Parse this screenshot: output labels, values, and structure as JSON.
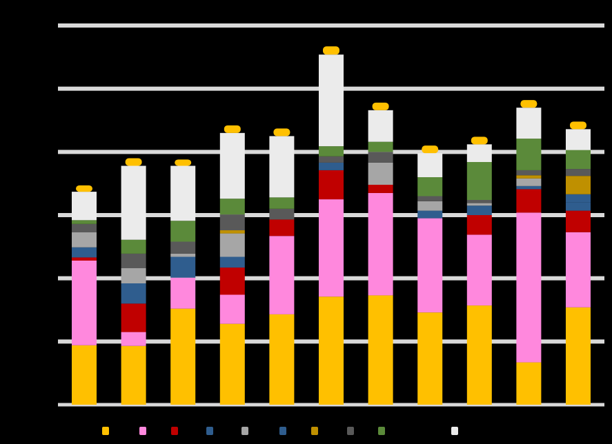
{
  "chart_data": {
    "type": "bar",
    "stacked": true,
    "categories": [
      "",
      "",
      "",
      "",
      "",
      "",
      "",
      "",
      "",
      "",
      ""
    ],
    "ylim": [
      0,
      6
    ],
    "grid": true,
    "legend_position": "bottom",
    "series": [
      {
        "color": "#FFC000",
        "values": [
          0.94,
          0.93,
          1.52,
          1.28,
          1.43,
          1.71,
          1.73,
          1.46,
          1.57,
          0.67,
          1.54
        ]
      },
      {
        "color": "#FF88DD",
        "values": [
          1.34,
          0.22,
          0.49,
          0.46,
          1.24,
          1.54,
          1.62,
          1.49,
          1.12,
          2.37,
          1.19
        ]
      },
      {
        "color": "#C00000",
        "values": [
          0.05,
          0.45,
          0.0,
          0.43,
          0.26,
          0.46,
          0.13,
          0.0,
          0.31,
          0.37,
          0.34
        ]
      },
      {
        "color": "#2F5D8E",
        "values": [
          0.16,
          0.32,
          0.33,
          0.17,
          0.0,
          0.12,
          0.0,
          0.12,
          0.15,
          0.05,
          0.13
        ]
      },
      {
        "color": "#A6A6A6",
        "values": [
          0.24,
          0.24,
          0.05,
          0.37,
          0.0,
          0.0,
          0.35,
          0.15,
          0.04,
          0.12,
          0.0
        ]
      },
      {
        "color": "#2F5D8E",
        "values": [
          0.0,
          0.0,
          0.0,
          0.0,
          0.0,
          0.0,
          0.0,
          0.0,
          0.0,
          0.0,
          0.13
        ]
      },
      {
        "color": "#BF9000",
        "values": [
          0.0,
          0.0,
          0.0,
          0.05,
          0.0,
          0.0,
          0.0,
          0.0,
          0.0,
          0.05,
          0.29
        ]
      },
      {
        "color": "#595959",
        "values": [
          0.13,
          0.23,
          0.19,
          0.25,
          0.17,
          0.1,
          0.17,
          0.08,
          0.05,
          0.08,
          0.11
        ]
      },
      {
        "color": "#5B8A3A",
        "values": [
          0.06,
          0.22,
          0.33,
          0.25,
          0.18,
          0.16,
          0.16,
          0.3,
          0.6,
          0.5,
          0.3
        ]
      },
      {
        "color": "#000000",
        "values": [
          0.0,
          0.0,
          0.0,
          0.0,
          0.0,
          0.0,
          0.0,
          0.0,
          0.0,
          0.0,
          0.0
        ]
      },
      {
        "color": "#EBEBEB",
        "values": [
          0.45,
          1.17,
          0.87,
          1.04,
          0.97,
          1.45,
          0.5,
          0.38,
          0.28,
          0.49,
          0.33
        ]
      },
      {
        "color": "#FFC000",
        "values": [
          0.1,
          0.12,
          0.1,
          0.12,
          0.12,
          0.13,
          0.12,
          0.12,
          0.12,
          0.12,
          0.12
        ]
      }
    ]
  }
}
